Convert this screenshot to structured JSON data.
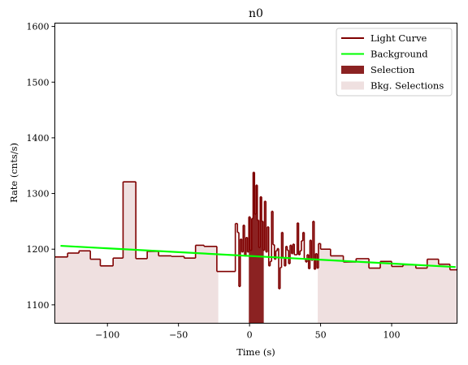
{
  "chart_data": {
    "type": "line",
    "title": "n0",
    "xlabel": "Time (s)",
    "ylabel": "Rate (cnts/s)",
    "xlim": [
      -137,
      146
    ],
    "ylim": [
      1067,
      1606
    ],
    "xticks": [
      -100,
      -50,
      0,
      50,
      100
    ],
    "yticks": [
      1100,
      1200,
      1300,
      1400,
      1500,
      1600
    ],
    "grid": false,
    "legend_position": "top-right",
    "legend": [
      {
        "label": "Light Curve",
        "kind": "line",
        "color": "#7f0000"
      },
      {
        "label": "Background",
        "kind": "line",
        "color": "#00ff00"
      },
      {
        "label": "Selection",
        "kind": "patch",
        "color": "#8b2222"
      },
      {
        "label": "Bkg. Selections",
        "kind": "patch",
        "color": "#efe0e0"
      }
    ],
    "bkg_selections": [
      [
        -137,
        -22
      ],
      [
        48,
        146
      ]
    ],
    "selection": [
      -0.5,
      10
    ],
    "background": {
      "x": [
        -133,
        145
      ],
      "y": [
        1206,
        1168
      ],
      "color": "#00ff00"
    },
    "light_curve": {
      "color": "#7f0000",
      "x": [
        -137,
        -128,
        -120,
        -112,
        -105,
        -96,
        -89,
        -80,
        -72,
        -64,
        -55,
        -46,
        -38,
        -32,
        -23,
        -10,
        -8.5,
        -7.5,
        -6.5,
        -5.5,
        -4.5,
        -3.5,
        -2.5,
        -1.5,
        -0.5,
        0.5,
        1.5,
        2.5,
        3.5,
        4.5,
        5.5,
        6.5,
        7.5,
        8.5,
        9.5,
        10.5,
        11.5,
        12.5,
        13.5,
        14.5,
        15.5,
        16.5,
        17.5,
        18.5,
        19.5,
        20.5,
        21.5,
        22.5,
        23.5,
        24.5,
        25.5,
        26.5,
        27.5,
        28.5,
        29.5,
        30.5,
        31.5,
        32.5,
        33.5,
        34.5,
        35.5,
        36.5,
        37.5,
        38.5,
        39.5,
        40.5,
        41.5,
        42.5,
        43.5,
        44.5,
        45.5,
        46.5,
        47.5,
        48.5,
        50,
        57,
        66,
        75,
        84,
        92,
        100,
        108,
        117,
        125,
        133,
        141,
        146
      ],
      "y": [
        1186,
        1193,
        1197,
        1182,
        1170,
        1184,
        1321,
        1183,
        1196,
        1188,
        1187,
        1184,
        1207,
        1205,
        1160,
        1246,
        1230,
        1133,
        1218,
        1195,
        1243,
        1188,
        1221,
        1195,
        1258,
        1198,
        1255,
        1338,
        1263,
        1315,
        1252,
        1203,
        1294,
        1250,
        1198,
        1286,
        1195,
        1240,
        1170,
        1178,
        1268,
        1208,
        1182,
        1197,
        1201,
        1129,
        1167,
        1230,
        1185,
        1170,
        1205,
        1198,
        1174,
        1207,
        1192,
        1209,
        1190,
        1190,
        1247,
        1190,
        1197,
        1215,
        1230,
        1182,
        1177,
        1190,
        1165,
        1216,
        1180,
        1250,
        1164,
        1192,
        1166,
        1210,
        1200,
        1188,
        1177,
        1183,
        1166,
        1178,
        1169,
        1172,
        1166,
        1182,
        1173,
        1163,
        1164
      ]
    }
  }
}
